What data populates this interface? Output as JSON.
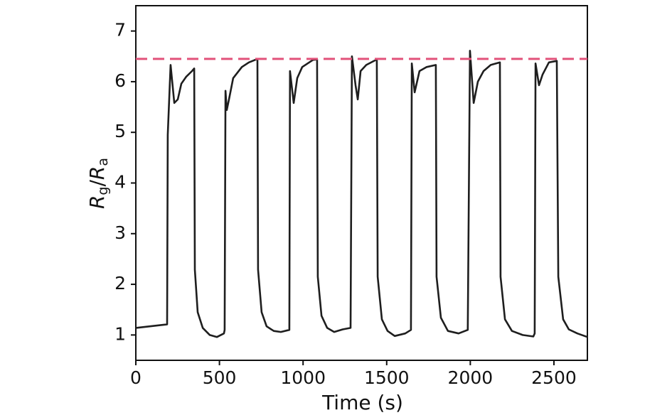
{
  "chart_data": {
    "type": "line",
    "x_label": "Time (s)",
    "y_label": [
      "R",
      "g",
      "/",
      "R",
      "a"
    ],
    "x": [
      0,
      187,
      191,
      208,
      230,
      251,
      272,
      302,
      336,
      349,
      353,
      370,
      400,
      442,
      485,
      527,
      531,
      536,
      544,
      557,
      582,
      634,
      676,
      727,
      731,
      752,
      782,
      825,
      867,
      918,
      922,
      944,
      965,
      995,
      1059,
      1084,
      1088,
      1110,
      1144,
      1186,
      1237,
      1284,
      1292,
      1314,
      1327,
      1344,
      1378,
      1441,
      1446,
      1471,
      1505,
      1548,
      1611,
      1645,
      1650,
      1667,
      1696,
      1739,
      1794,
      1798,
      1824,
      1866,
      1930,
      1985,
      1998,
      2020,
      2045,
      2079,
      2122,
      2177,
      2181,
      2207,
      2249,
      2313,
      2377,
      2385,
      2390,
      2411,
      2432,
      2470,
      2517,
      2526,
      2555,
      2589,
      2640,
      2700
    ],
    "values": [
      1.14,
      1.21,
      4.95,
      6.33,
      5.58,
      5.65,
      5.96,
      6.1,
      6.21,
      6.26,
      2.29,
      1.45,
      1.14,
      1.0,
      0.96,
      1.03,
      1.1,
      5.82,
      5.44,
      5.65,
      6.07,
      6.29,
      6.38,
      6.45,
      2.29,
      1.45,
      1.17,
      1.08,
      1.06,
      1.1,
      6.21,
      5.58,
      6.07,
      6.29,
      6.43,
      6.44,
      2.15,
      1.38,
      1.14,
      1.06,
      1.11,
      1.14,
      6.5,
      5.93,
      5.65,
      6.21,
      6.33,
      6.44,
      2.15,
      1.31,
      1.08,
      0.98,
      1.03,
      1.1,
      6.36,
      5.79,
      6.21,
      6.29,
      6.33,
      2.15,
      1.34,
      1.08,
      1.03,
      1.1,
      6.61,
      5.58,
      6.0,
      6.21,
      6.33,
      6.38,
      2.15,
      1.31,
      1.08,
      1.0,
      0.97,
      1.03,
      6.36,
      5.93,
      6.14,
      6.38,
      6.41,
      2.15,
      1.31,
      1.11,
      1.03,
      0.96
    ],
    "color": "#1e1e1e",
    "xlim": [
      0,
      2700
    ],
    "ylim": [
      0.5,
      7.5
    ],
    "xticks": [
      0,
      500,
      1000,
      1500,
      2000,
      2500
    ],
    "yticks": [
      1,
      2,
      3,
      4,
      5,
      6,
      7
    ],
    "reference_line": {
      "value": 6.45,
      "color": "#e2527a",
      "style": "dashed"
    }
  }
}
